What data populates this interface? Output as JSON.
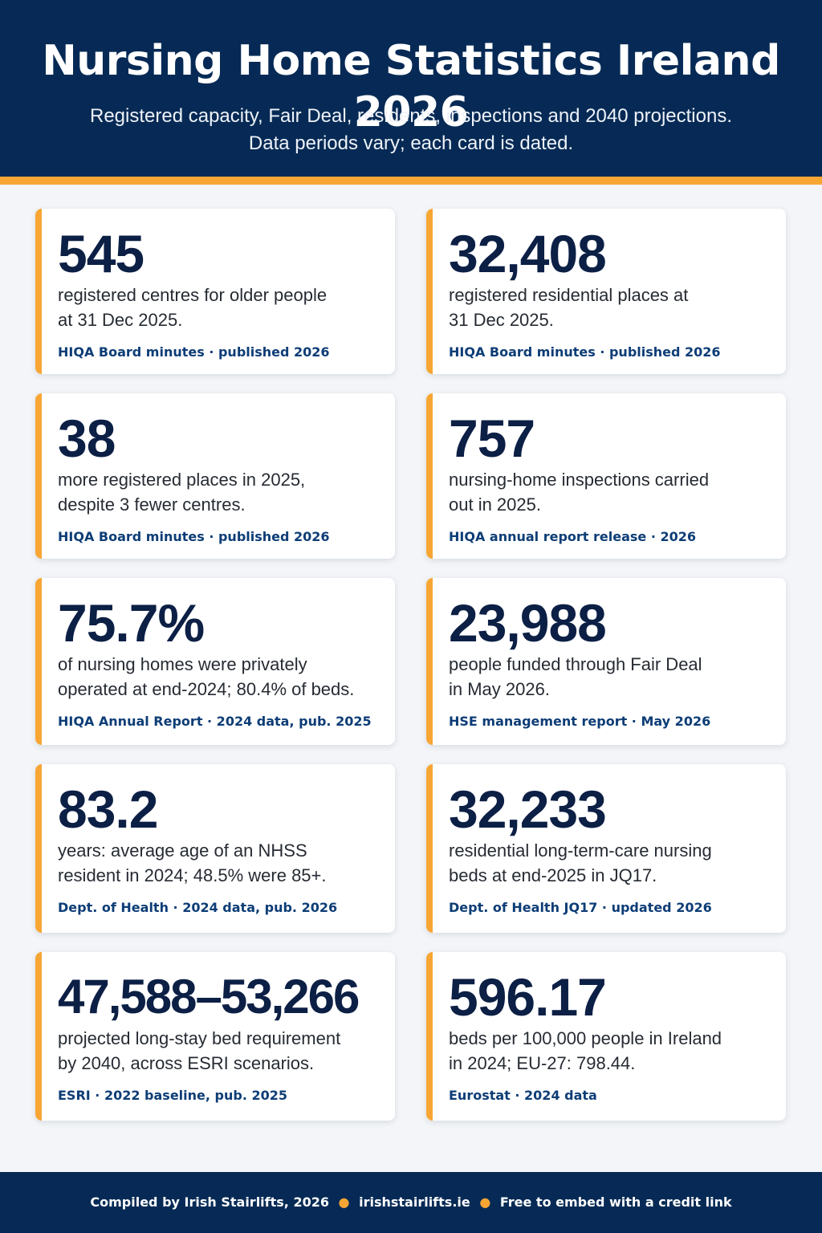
{
  "header": {
    "title": "Nursing Home Statistics Ireland 2026",
    "subtitle_line1": "Registered capacity, Fair Deal, residents, inspections and 2040 projections.",
    "subtitle_line2": "Data periods vary; each card is dated."
  },
  "colors": {
    "header_bg": "#062a55",
    "accent": "#f7a634",
    "value_text": "#0c1f45",
    "source_text": "#0d3d76",
    "page_bg": "#f3f5f8"
  },
  "cards": [
    {
      "value": "545",
      "desc_line1": "registered centres for older people",
      "desc_line2": "at 31 Dec 2025.",
      "source": "HIQA Board minutes · published 2026"
    },
    {
      "value": "32,408",
      "desc_line1": "registered residential places at",
      "desc_line2": "31 Dec 2025.",
      "source": "HIQA Board minutes · published 2026"
    },
    {
      "value": "38",
      "desc_line1": "more registered places in 2025,",
      "desc_line2": "despite 3 fewer centres.",
      "source": "HIQA Board minutes · published 2026"
    },
    {
      "value": "757",
      "desc_line1": "nursing-home inspections carried",
      "desc_line2": "out in 2025.",
      "source": "HIQA annual report release · 2026"
    },
    {
      "value": "75.7%",
      "desc_line1": "of nursing homes were privately",
      "desc_line2": "operated at end-2024; 80.4% of beds.",
      "source": "HIQA Annual Report · 2024 data, pub. 2025"
    },
    {
      "value": "23,988",
      "desc_line1": "people funded through Fair Deal",
      "desc_line2": "in May 2026.",
      "source": "HSE management report · May 2026"
    },
    {
      "value": "83.2",
      "desc_line1": "years: average age of an NHSS",
      "desc_line2": "resident in 2024; 48.5% were 85+.",
      "source": "Dept. of Health · 2024 data, pub. 2026"
    },
    {
      "value": "32,233",
      "desc_line1": "residential long-term-care nursing",
      "desc_line2": "beds at end-2025 in JQ17.",
      "source": "Dept. of Health JQ17 · updated 2026"
    },
    {
      "value": "47,588–53,266",
      "desc_line1": "projected long-stay bed requirement",
      "desc_line2": "by 2040, across ESRI scenarios.",
      "source": "ESRI · 2022 baseline, pub. 2025"
    },
    {
      "value": "596.17",
      "desc_line1": "beds per 100,000 people in Ireland",
      "desc_line2": "in 2024; EU-27: 798.44.",
      "source": "Eurostat · 2024 data"
    }
  ],
  "footer": {
    "credit": "Compiled by Irish Stairlifts, 2026",
    "site": "irishstairlifts.ie",
    "embed": "Free to embed with a credit link",
    "separator": "●"
  }
}
